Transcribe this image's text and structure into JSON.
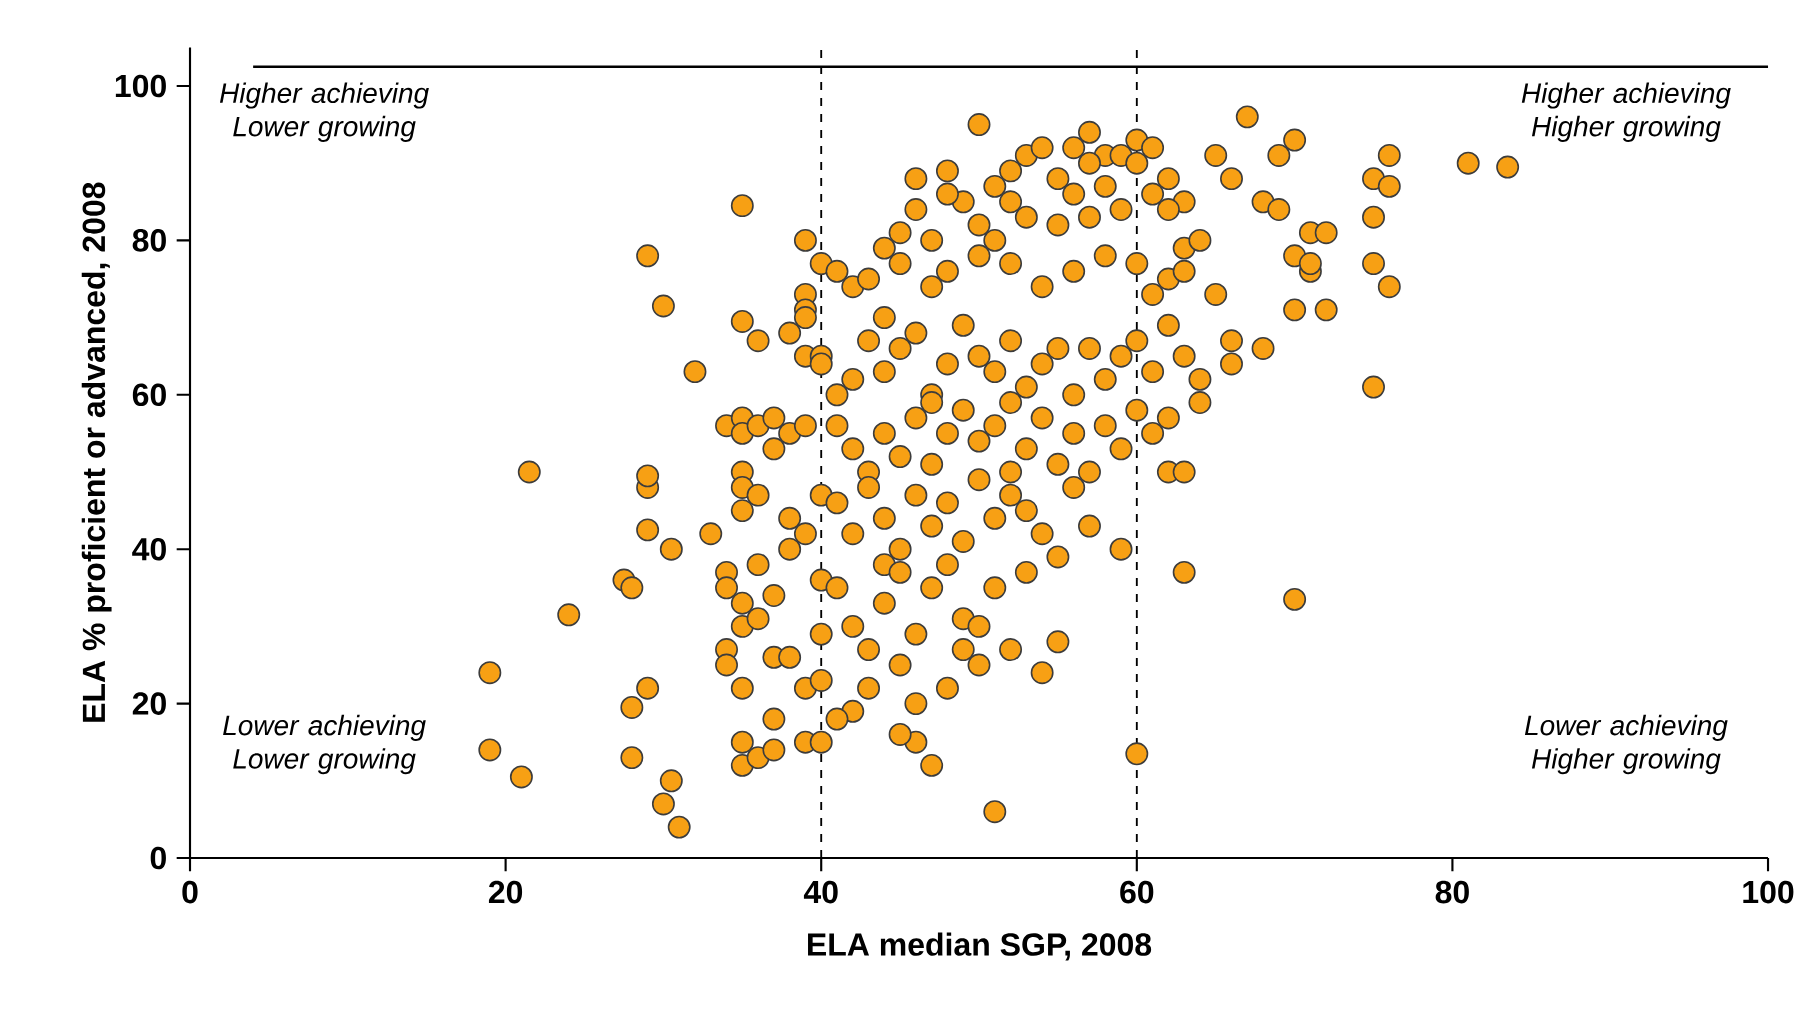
{
  "chart_data": {
    "type": "scatter",
    "xlabel": "ELA median SGP, 2008",
    "ylabel": "ELA % proficient or advanced, 2008",
    "xlim": [
      0,
      100
    ],
    "xticks": [
      0,
      20,
      40,
      60,
      80,
      100
    ],
    "ylim": [
      0,
      105
    ],
    "yticks": [
      0,
      20,
      40,
      60,
      80,
      100
    ],
    "marker": "circle",
    "grid": false,
    "annotations": [
      "Higher achieving Lower growing",
      "Higher achieving Higher growing",
      "Lower achieving Lower growing",
      "Lower achieving Higher growing"
    ],
    "ref_lines": [
      {
        "axis": "x",
        "value": 40,
        "line_style": "dashed",
        "color": "#000000"
      },
      {
        "axis": "x",
        "value": 60,
        "line_style": "dashed",
        "color": "#000000"
      },
      {
        "axis": "y",
        "value": 102.5,
        "line_style": "solid",
        "color": "#000000"
      }
    ],
    "series": [
      {
        "color": "#f7a014",
        "x": [
          19,
          19,
          21,
          21.5,
          24,
          27.5,
          28,
          28,
          28,
          29,
          29,
          29,
          29,
          29,
          30,
          30.5,
          30.5,
          30,
          31,
          32,
          33,
          34,
          34,
          34,
          34,
          34,
          35,
          35,
          35,
          35,
          35,
          35,
          35,
          35,
          35,
          35,
          35,
          35,
          36,
          36,
          36,
          36,
          36,
          36,
          37,
          37,
          37,
          37,
          37,
          37,
          38,
          38,
          38,
          38,
          38,
          39,
          39,
          39,
          39,
          39,
          39,
          39,
          39,
          39,
          40,
          40,
          40,
          40,
          40,
          40,
          40,
          60,
          61,
          62,
          63,
          65,
          66,
          67,
          68,
          69,
          69,
          70,
          70,
          70,
          71,
          71,
          71,
          72,
          72,
          75,
          75,
          75,
          75,
          76,
          76,
          76,
          81,
          83.5,
          70,
          63,
          60,
          59,
          62,
          63,
          51,
          54,
          50,
          47,
          46,
          45,
          50,
          57,
          56,
          58,
          59,
          60,
          48,
          52,
          53,
          54,
          46,
          49,
          51,
          52,
          55,
          56,
          57,
          58,
          44,
          45,
          46,
          47,
          48,
          50,
          51,
          53,
          55,
          57,
          59,
          61,
          62,
          63,
          64,
          41,
          42,
          43,
          44,
          45,
          47,
          48,
          50,
          52,
          54,
          56,
          58,
          60,
          61,
          62,
          63,
          65,
          40,
          41,
          42,
          43,
          44,
          45,
          46,
          47,
          48,
          49,
          50,
          51,
          52,
          53,
          54,
          55,
          56,
          57,
          58,
          59,
          60,
          61,
          62,
          63,
          64,
          66,
          68,
          66,
          41,
          42,
          43,
          44,
          45,
          46,
          47,
          48,
          49,
          50,
          51,
          52,
          53,
          54,
          55,
          56,
          57,
          58,
          59,
          60,
          61,
          62,
          64,
          52,
          47,
          41,
          42,
          43,
          44,
          45,
          46,
          47,
          48,
          49,
          50,
          51,
          52,
          53,
          54,
          55,
          56,
          57,
          48,
          44,
          41,
          42,
          43,
          44,
          45,
          46,
          47,
          48,
          49,
          50,
          51,
          52,
          53,
          55,
          42,
          43,
          41,
          45,
          49,
          46
        ],
        "values": [
          24,
          14,
          10.5,
          50,
          31.5,
          36,
          35,
          19.5,
          13,
          48,
          49.5,
          42.5,
          78,
          22,
          71.5,
          40,
          10,
          7,
          4,
          63,
          42,
          56,
          37,
          35,
          27,
          25,
          84.5,
          69.5,
          57,
          55,
          50,
          48,
          45,
          33,
          30,
          22,
          15,
          12,
          67,
          56,
          47,
          38,
          31,
          13,
          57,
          53,
          34,
          26,
          18,
          14,
          68,
          55,
          44,
          40,
          26,
          80,
          73,
          71,
          70,
          65,
          56,
          42,
          22,
          15,
          77,
          65,
          47,
          36,
          29,
          23,
          15,
          93,
          92,
          88,
          85,
          91,
          88,
          96,
          85,
          84,
          91,
          93,
          78,
          71,
          76,
          77,
          81,
          71,
          81,
          88,
          83,
          77,
          61,
          87,
          91,
          74,
          90,
          89.5,
          33.5,
          37,
          13.5,
          40,
          50,
          50,
          6,
          24,
          25,
          12,
          15,
          16,
          95,
          94,
          92,
          91,
          91,
          90,
          89,
          89,
          91,
          92,
          88,
          85,
          87,
          85,
          88,
          86,
          90,
          87,
          79,
          81,
          84,
          80,
          86,
          82,
          80,
          83,
          82,
          83,
          84,
          86,
          84,
          79,
          80,
          76,
          74,
          75,
          70,
          77,
          74,
          76,
          78,
          77,
          74,
          76,
          78,
          77,
          73,
          75,
          76,
          73,
          64,
          60,
          62,
          67,
          63,
          66,
          68,
          60,
          64,
          69,
          65,
          63,
          67,
          61,
          64,
          66,
          60,
          66,
          62,
          65,
          67,
          63,
          69,
          65,
          62,
          67,
          66,
          64,
          56,
          53,
          50,
          55,
          52,
          57,
          51,
          55,
          58,
          54,
          56,
          50,
          53,
          57,
          51,
          55,
          50,
          56,
          53,
          58,
          55,
          57,
          59,
          59,
          59,
          46,
          42,
          48,
          44,
          40,
          47,
          43,
          46,
          41,
          49,
          44,
          47,
          45,
          42,
          39,
          48,
          43,
          38,
          38,
          35,
          30,
          27,
          33,
          37,
          29,
          35,
          22,
          31,
          30,
          35,
          27,
          37,
          28,
          19,
          22,
          18,
          25,
          27,
          20
        ]
      }
    ]
  }
}
